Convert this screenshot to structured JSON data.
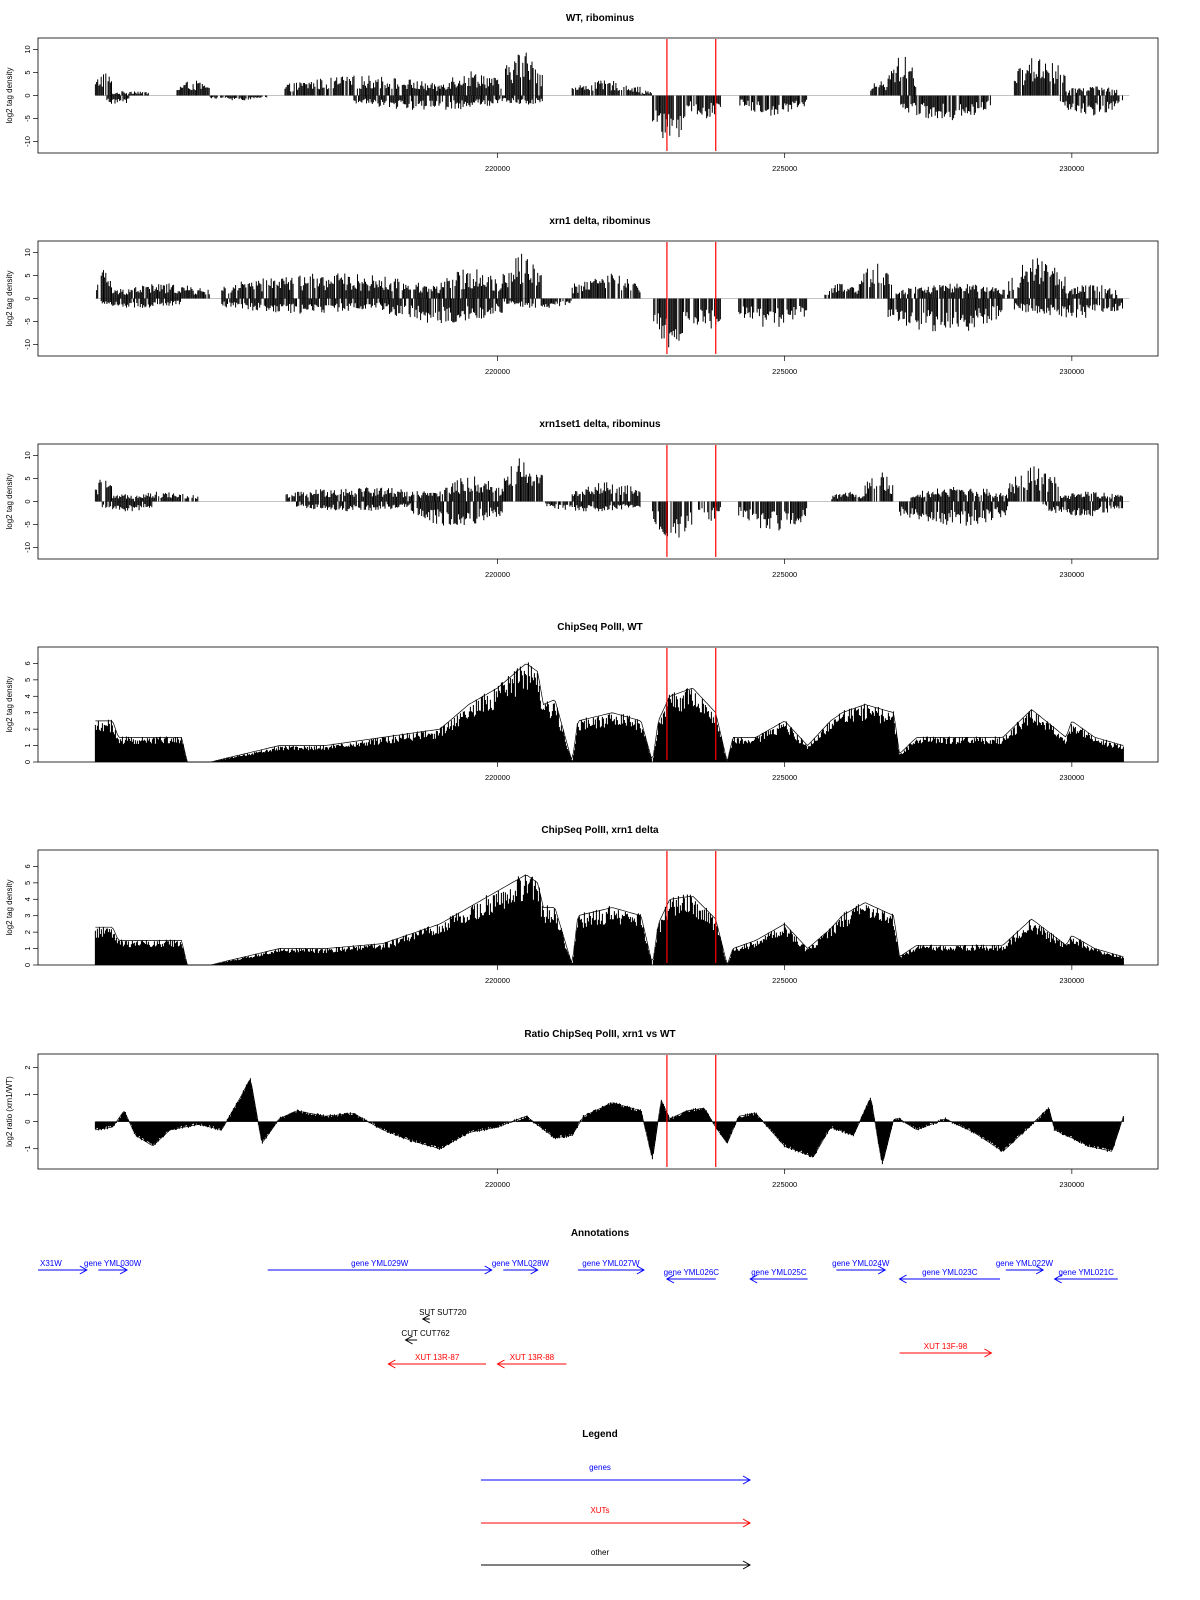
{
  "chart_data": [
    {
      "type": "bar",
      "title": "WT, ribominus",
      "ylabel": "log2 tag density",
      "xlim": [
        212000,
        231500
      ],
      "ylim": [
        -12.5,
        12.5
      ],
      "y_ticks": [
        "-10",
        "-5",
        "0",
        "5",
        "10"
      ],
      "x_ticks": [
        "220000",
        "225000",
        "230000"
      ],
      "markers": [
        222950,
        223800
      ],
      "plus_strand": [
        {
          "start": 213000,
          "end": 213300,
          "value": 5
        },
        {
          "start": 213300,
          "end": 214000,
          "value": 1
        },
        {
          "start": 214400,
          "end": 215000,
          "value": 3
        },
        {
          "start": 216300,
          "end": 219000,
          "value": 4
        },
        {
          "start": 219000,
          "end": 220100,
          "value": 5
        },
        {
          "start": 220100,
          "end": 220800,
          "value": 9
        },
        {
          "start": 221300,
          "end": 222500,
          "value": 3
        },
        {
          "start": 222500,
          "end": 222700,
          "value": 1
        },
        {
          "start": 226500,
          "end": 226800,
          "value": 3
        },
        {
          "start": 226800,
          "end": 227300,
          "value": 8
        },
        {
          "start": 229000,
          "end": 229900,
          "value": 8
        },
        {
          "start": 229900,
          "end": 230800,
          "value": 2
        }
      ],
      "minus_strand": [
        {
          "start": 213200,
          "end": 213600,
          "value": -2
        },
        {
          "start": 215000,
          "end": 216000,
          "value": -1
        },
        {
          "start": 217500,
          "end": 220100,
          "value": -3
        },
        {
          "start": 220100,
          "end": 220800,
          "value": -2
        },
        {
          "start": 222700,
          "end": 223300,
          "value": -10
        },
        {
          "start": 223300,
          "end": 223900,
          "value": -5
        },
        {
          "start": 224200,
          "end": 225400,
          "value": -4
        },
        {
          "start": 227000,
          "end": 228600,
          "value": -5
        },
        {
          "start": 229800,
          "end": 230900,
          "value": -4
        }
      ]
    },
    {
      "type": "bar",
      "title": "xrn1 delta, ribominus",
      "ylabel": "log2 tag density",
      "xlim": [
        212000,
        231500
      ],
      "ylim": [
        -12.5,
        12.5
      ],
      "y_ticks": [
        "-10",
        "-5",
        "0",
        "5",
        "10"
      ],
      "x_ticks": [
        "220000",
        "225000",
        "230000"
      ],
      "markers": [
        222950,
        223800
      ],
      "plus_strand": [
        {
          "start": 213000,
          "end": 213300,
          "value": 6
        },
        {
          "start": 213300,
          "end": 215000,
          "value": 3
        },
        {
          "start": 215200,
          "end": 219000,
          "value": 5
        },
        {
          "start": 219000,
          "end": 220100,
          "value": 6
        },
        {
          "start": 220100,
          "end": 220800,
          "value": 9
        },
        {
          "start": 221300,
          "end": 222500,
          "value": 5
        },
        {
          "start": 225700,
          "end": 226300,
          "value": 3
        },
        {
          "start": 226300,
          "end": 226900,
          "value": 7
        },
        {
          "start": 226900,
          "end": 228900,
          "value": 3
        },
        {
          "start": 228900,
          "end": 229900,
          "value": 8
        },
        {
          "start": 229900,
          "end": 230800,
          "value": 3
        }
      ],
      "minus_strand": [
        {
          "start": 213100,
          "end": 214500,
          "value": -2
        },
        {
          "start": 215200,
          "end": 218000,
          "value": -3
        },
        {
          "start": 218000,
          "end": 220100,
          "value": -5
        },
        {
          "start": 220100,
          "end": 221300,
          "value": -2
        },
        {
          "start": 222700,
          "end": 223300,
          "value": -10
        },
        {
          "start": 223300,
          "end": 223900,
          "value": -7
        },
        {
          "start": 224200,
          "end": 225400,
          "value": -6
        },
        {
          "start": 226800,
          "end": 228800,
          "value": -7
        },
        {
          "start": 229000,
          "end": 230900,
          "value": -4
        }
      ]
    },
    {
      "type": "bar",
      "title": "xrn1set1 delta, ribominus",
      "ylabel": "log2 tag density",
      "xlim": [
        212000,
        231500
      ],
      "ylim": [
        -12.5,
        12.5
      ],
      "y_ticks": [
        "-10",
        "-5",
        "0",
        "5",
        "10"
      ],
      "x_ticks": [
        "220000",
        "225000",
        "230000"
      ],
      "markers": [
        222950,
        223800
      ],
      "plus_strand": [
        {
          "start": 213000,
          "end": 213300,
          "value": 5
        },
        {
          "start": 213300,
          "end": 214800,
          "value": 2
        },
        {
          "start": 216300,
          "end": 219000,
          "value": 3
        },
        {
          "start": 219000,
          "end": 220100,
          "value": 5
        },
        {
          "start": 220100,
          "end": 220800,
          "value": 9
        },
        {
          "start": 221300,
          "end": 222500,
          "value": 4
        },
        {
          "start": 225800,
          "end": 226400,
          "value": 2
        },
        {
          "start": 226400,
          "end": 226900,
          "value": 6
        },
        {
          "start": 227200,
          "end": 228900,
          "value": 3
        },
        {
          "start": 228900,
          "end": 229800,
          "value": 7
        },
        {
          "start": 229800,
          "end": 230900,
          "value": 2
        }
      ],
      "minus_strand": [
        {
          "start": 213100,
          "end": 214000,
          "value": -2
        },
        {
          "start": 216500,
          "end": 218500,
          "value": -2
        },
        {
          "start": 218500,
          "end": 220100,
          "value": -5
        },
        {
          "start": 220800,
          "end": 222500,
          "value": -2
        },
        {
          "start": 222700,
          "end": 223400,
          "value": -8
        },
        {
          "start": 223500,
          "end": 223900,
          "value": -4
        },
        {
          "start": 224200,
          "end": 225400,
          "value": -6
        },
        {
          "start": 227000,
          "end": 228900,
          "value": -5
        },
        {
          "start": 229500,
          "end": 230900,
          "value": -3
        }
      ]
    },
    {
      "type": "area",
      "title": "ChipSeq PolII, WT",
      "ylabel": "log2 tag density",
      "xlim": [
        212000,
        231500
      ],
      "ylim": [
        0,
        7
      ],
      "y_ticks": [
        "0",
        "1",
        "2",
        "3",
        "4",
        "5",
        "6"
      ],
      "x_ticks": [
        "220000",
        "225000",
        "230000"
      ],
      "markers": [
        222950,
        223800
      ],
      "x": [
        213000,
        213300,
        213400,
        214500,
        214600,
        215000,
        216200,
        217000,
        218000,
        219000,
        219500,
        220000,
        220500,
        220700,
        220800,
        221000,
        221300,
        221400,
        222000,
        222500,
        222700,
        222800,
        223000,
        223400,
        223800,
        224000,
        224100,
        224500,
        225000,
        225400,
        225800,
        226000,
        226400,
        226900,
        227000,
        227300,
        228000,
        228800,
        229300,
        229900,
        230000,
        230400,
        230900
      ],
      "y": [
        2.5,
        2.5,
        1.5,
        1.5,
        0,
        0,
        1,
        1,
        1.5,
        2,
        3.5,
        4.5,
        6,
        5.5,
        3.5,
        3.8,
        0,
        2.5,
        3,
        2.5,
        0,
        2.5,
        4,
        4.5,
        3,
        0,
        1.5,
        1.5,
        2.5,
        1,
        2.5,
        3,
        3.5,
        3,
        0.5,
        1.5,
        1.5,
        1.5,
        3.2,
        1.5,
        2.5,
        1.5,
        1
      ]
    },
    {
      "type": "area",
      "title": "ChipSeq PolII, xrn1 delta",
      "ylabel": "log2 tag density",
      "xlim": [
        212000,
        231500
      ],
      "ylim": [
        0,
        7
      ],
      "y_ticks": [
        "0",
        "1",
        "2",
        "3",
        "4",
        "5",
        "6"
      ],
      "x_ticks": [
        "220000",
        "225000",
        "230000"
      ],
      "markers": [
        222950,
        223800
      ],
      "x": [
        213000,
        213300,
        213400,
        214500,
        214600,
        215000,
        216200,
        217000,
        218000,
        219000,
        219500,
        220000,
        220500,
        220700,
        220800,
        221000,
        221300,
        221400,
        222000,
        222500,
        222700,
        222800,
        223000,
        223400,
        223800,
        224000,
        224100,
        224500,
        225000,
        225400,
        225800,
        226000,
        226400,
        226900,
        227000,
        227300,
        228000,
        228800,
        229300,
        229900,
        230000,
        230400,
        230900
      ],
      "y": [
        2.3,
        2.3,
        1.5,
        1.5,
        0,
        0,
        1,
        1,
        1.3,
        2.5,
        3.5,
        4.5,
        5.5,
        5,
        3.5,
        3.5,
        0,
        3,
        3.5,
        3,
        0,
        2.5,
        4,
        4.2,
        2.8,
        0,
        1,
        1.5,
        2.5,
        1,
        2.2,
        3,
        3.8,
        3,
        0.5,
        1.2,
        1.2,
        1.2,
        2.8,
        1.2,
        1.8,
        1,
        0.5
      ]
    },
    {
      "type": "area",
      "title": "Ratio ChipSeq PolII, xrn1 vs WT",
      "ylabel": "log2 ratio (xrn1/WT)",
      "xlim": [
        212000,
        231500
      ],
      "ylim": [
        -1.75,
        2.5
      ],
      "y_ticks": [
        "-1",
        "0",
        "1",
        "2"
      ],
      "x_ticks": [
        "220000",
        "225000",
        "230000"
      ],
      "markers": [
        222950,
        223800
      ],
      "x": [
        213000,
        213300,
        213500,
        213700,
        214000,
        214300,
        214800,
        215200,
        215500,
        215700,
        215900,
        216200,
        216500,
        217000,
        217500,
        218000,
        218500,
        219000,
        219500,
        220000,
        220500,
        221000,
        221300,
        221500,
        222000,
        222500,
        222700,
        222850,
        223000,
        223300,
        223600,
        223800,
        224000,
        224200,
        224500,
        225000,
        225500,
        225800,
        226200,
        226500,
        226700,
        226900,
        227000,
        227300,
        227800,
        228300,
        228800,
        229200,
        229600,
        229700,
        229900,
        230300,
        230700,
        230900
      ],
      "y": [
        -0.3,
        -0.2,
        0.4,
        -0.5,
        -0.9,
        -0.3,
        -0.1,
        -0.3,
        0.8,
        1.6,
        -0.8,
        0.1,
        0.4,
        0.2,
        0.3,
        -0.3,
        -0.7,
        -1,
        -0.4,
        -0.2,
        0.2,
        -0.6,
        -0.5,
        0.2,
        0.7,
        0.4,
        -1.4,
        0.8,
        0.1,
        0.4,
        0.5,
        -0.2,
        -0.8,
        0.2,
        0.3,
        -0.9,
        -1.3,
        -0.2,
        -0.5,
        0.9,
        -1.6,
        0.1,
        0.1,
        -0.3,
        0.1,
        -0.4,
        -1.1,
        -0.3,
        0.5,
        -0.3,
        -0.5,
        -0.9,
        -1.1,
        0.2
      ]
    }
  ],
  "annotations": {
    "title": "Annotations",
    "items": [
      {
        "label": "X31W",
        "start": 212000,
        "end": 212850,
        "strand": "+",
        "row": 0,
        "kind": "gene"
      },
      {
        "label": "gene YML030W",
        "start": 213050,
        "end": 213550,
        "strand": "+",
        "row": 0,
        "kind": "gene"
      },
      {
        "label": "gene YML029W",
        "start": 216000,
        "end": 219900,
        "strand": "+",
        "row": 0,
        "kind": "gene"
      },
      {
        "label": "gene YML028W",
        "start": 220100,
        "end": 220700,
        "strand": "+",
        "row": 0,
        "kind": "gene"
      },
      {
        "label": "gene YML027W",
        "start": 221400,
        "end": 222550,
        "strand": "+",
        "row": 0,
        "kind": "gene"
      },
      {
        "label": "gene YML026C",
        "start": 222950,
        "end": 223800,
        "strand": "-",
        "row": 1,
        "kind": "gene"
      },
      {
        "label": "gene YML025C",
        "start": 224400,
        "end": 225400,
        "strand": "-",
        "row": 1,
        "kind": "gene"
      },
      {
        "label": "gene YML024W",
        "start": 225900,
        "end": 226750,
        "strand": "+",
        "row": 0,
        "kind": "gene"
      },
      {
        "label": "gene YML023C",
        "start": 227000,
        "end": 228750,
        "strand": "-",
        "row": 1,
        "kind": "gene"
      },
      {
        "label": "gene YML022W",
        "start": 228850,
        "end": 229500,
        "strand": "+",
        "row": 0,
        "kind": "gene"
      },
      {
        "label": "gene YML021C",
        "start": 229700,
        "end": 230800,
        "strand": "-",
        "row": 1,
        "kind": "gene"
      },
      {
        "label": "SUT SUT720",
        "start": 218700,
        "end": 218820,
        "strand": "-",
        "row": 2,
        "kind": "other"
      },
      {
        "label": "CUT CUT762",
        "start": 218400,
        "end": 218600,
        "strand": "-",
        "row": 3,
        "kind": "other"
      },
      {
        "label": "XUT 13R-87",
        "start": 218100,
        "end": 219800,
        "strand": "-",
        "row": 4,
        "kind": "xut"
      },
      {
        "label": "XUT 13R-88",
        "start": 220000,
        "end": 221200,
        "strand": "-",
        "row": 4,
        "kind": "xut"
      },
      {
        "label": "XUT 13F-98",
        "start": 227000,
        "end": 228600,
        "strand": "+",
        "row": 5,
        "kind": "xut"
      }
    ]
  },
  "legend": {
    "title": "Legend",
    "items": [
      {
        "label": "genes",
        "color": "#0000ff"
      },
      {
        "label": "XUTs",
        "color": "#ff0000"
      },
      {
        "label": "other",
        "color": "#000000"
      }
    ]
  },
  "colors": {
    "gene": "#0000ff",
    "xut": "#ff0000",
    "other": "#000000",
    "marker": "#ff0000",
    "bars": "#000000"
  }
}
